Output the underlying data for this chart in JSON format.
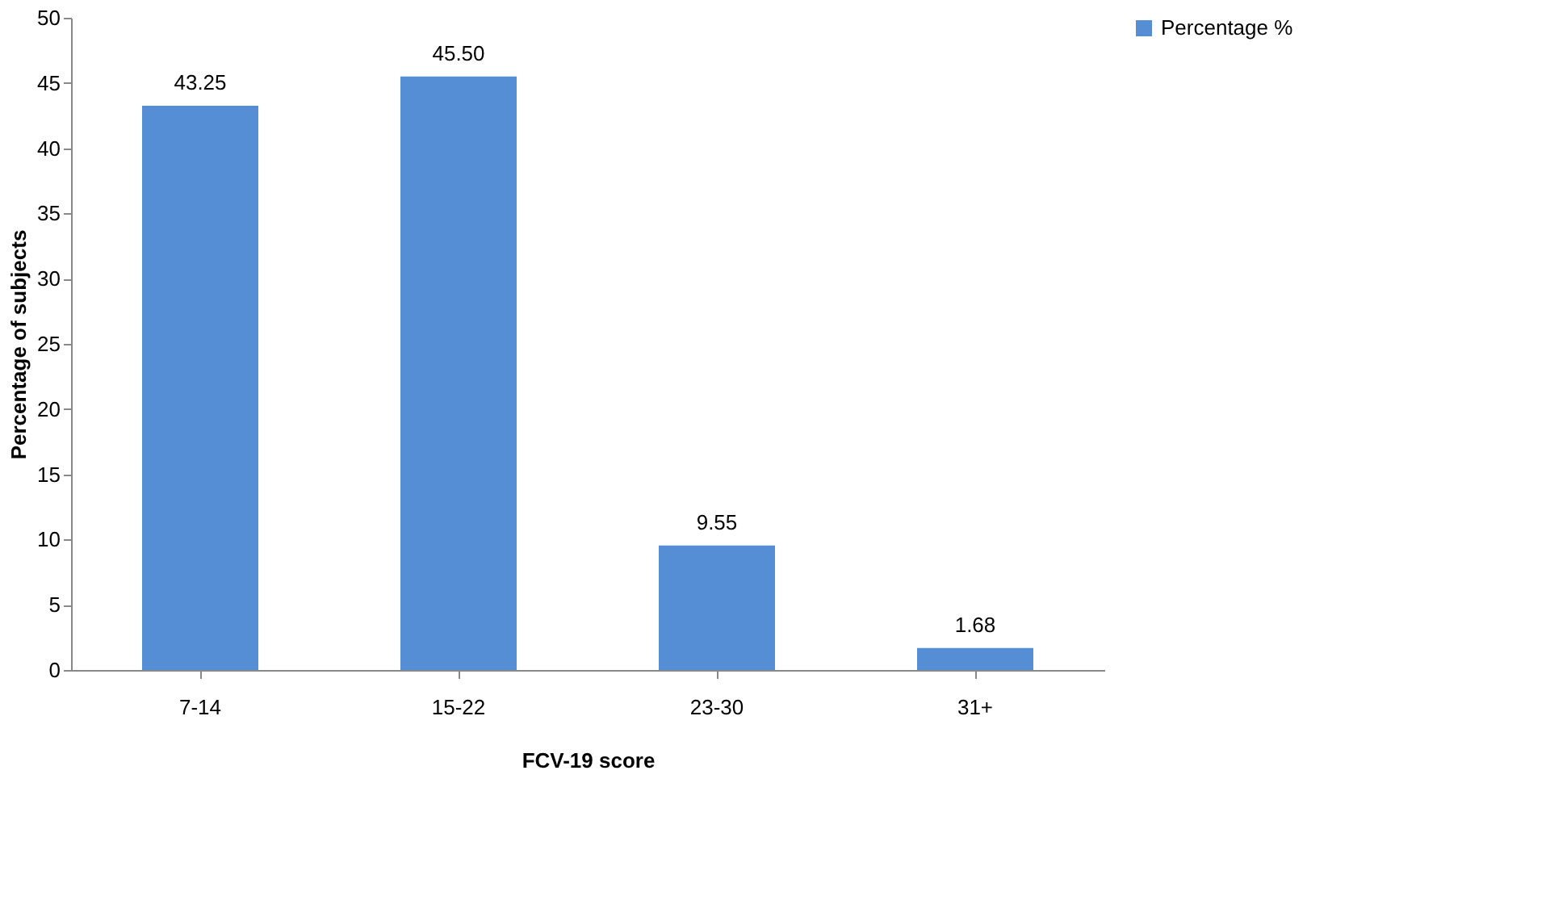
{
  "chart_data": {
    "type": "bar",
    "xlabel": "FCV-19 score",
    "ylabel": "Percentage of subjects",
    "categories": [
      "7-14",
      "15-22",
      "23-30",
      "31+"
    ],
    "series": [
      {
        "name": "Percentage %",
        "color": "#558ed5",
        "values": [
          43.25,
          45.5,
          9.55,
          1.68
        ],
        "value_labels": [
          "43.25",
          "45.50",
          "9.55",
          "1.68"
        ]
      }
    ],
    "ylim": [
      0,
      50
    ],
    "yticks": [
      0,
      5,
      10,
      15,
      20,
      25,
      30,
      35,
      40,
      45,
      50
    ],
    "grid": false,
    "legend": "right"
  }
}
